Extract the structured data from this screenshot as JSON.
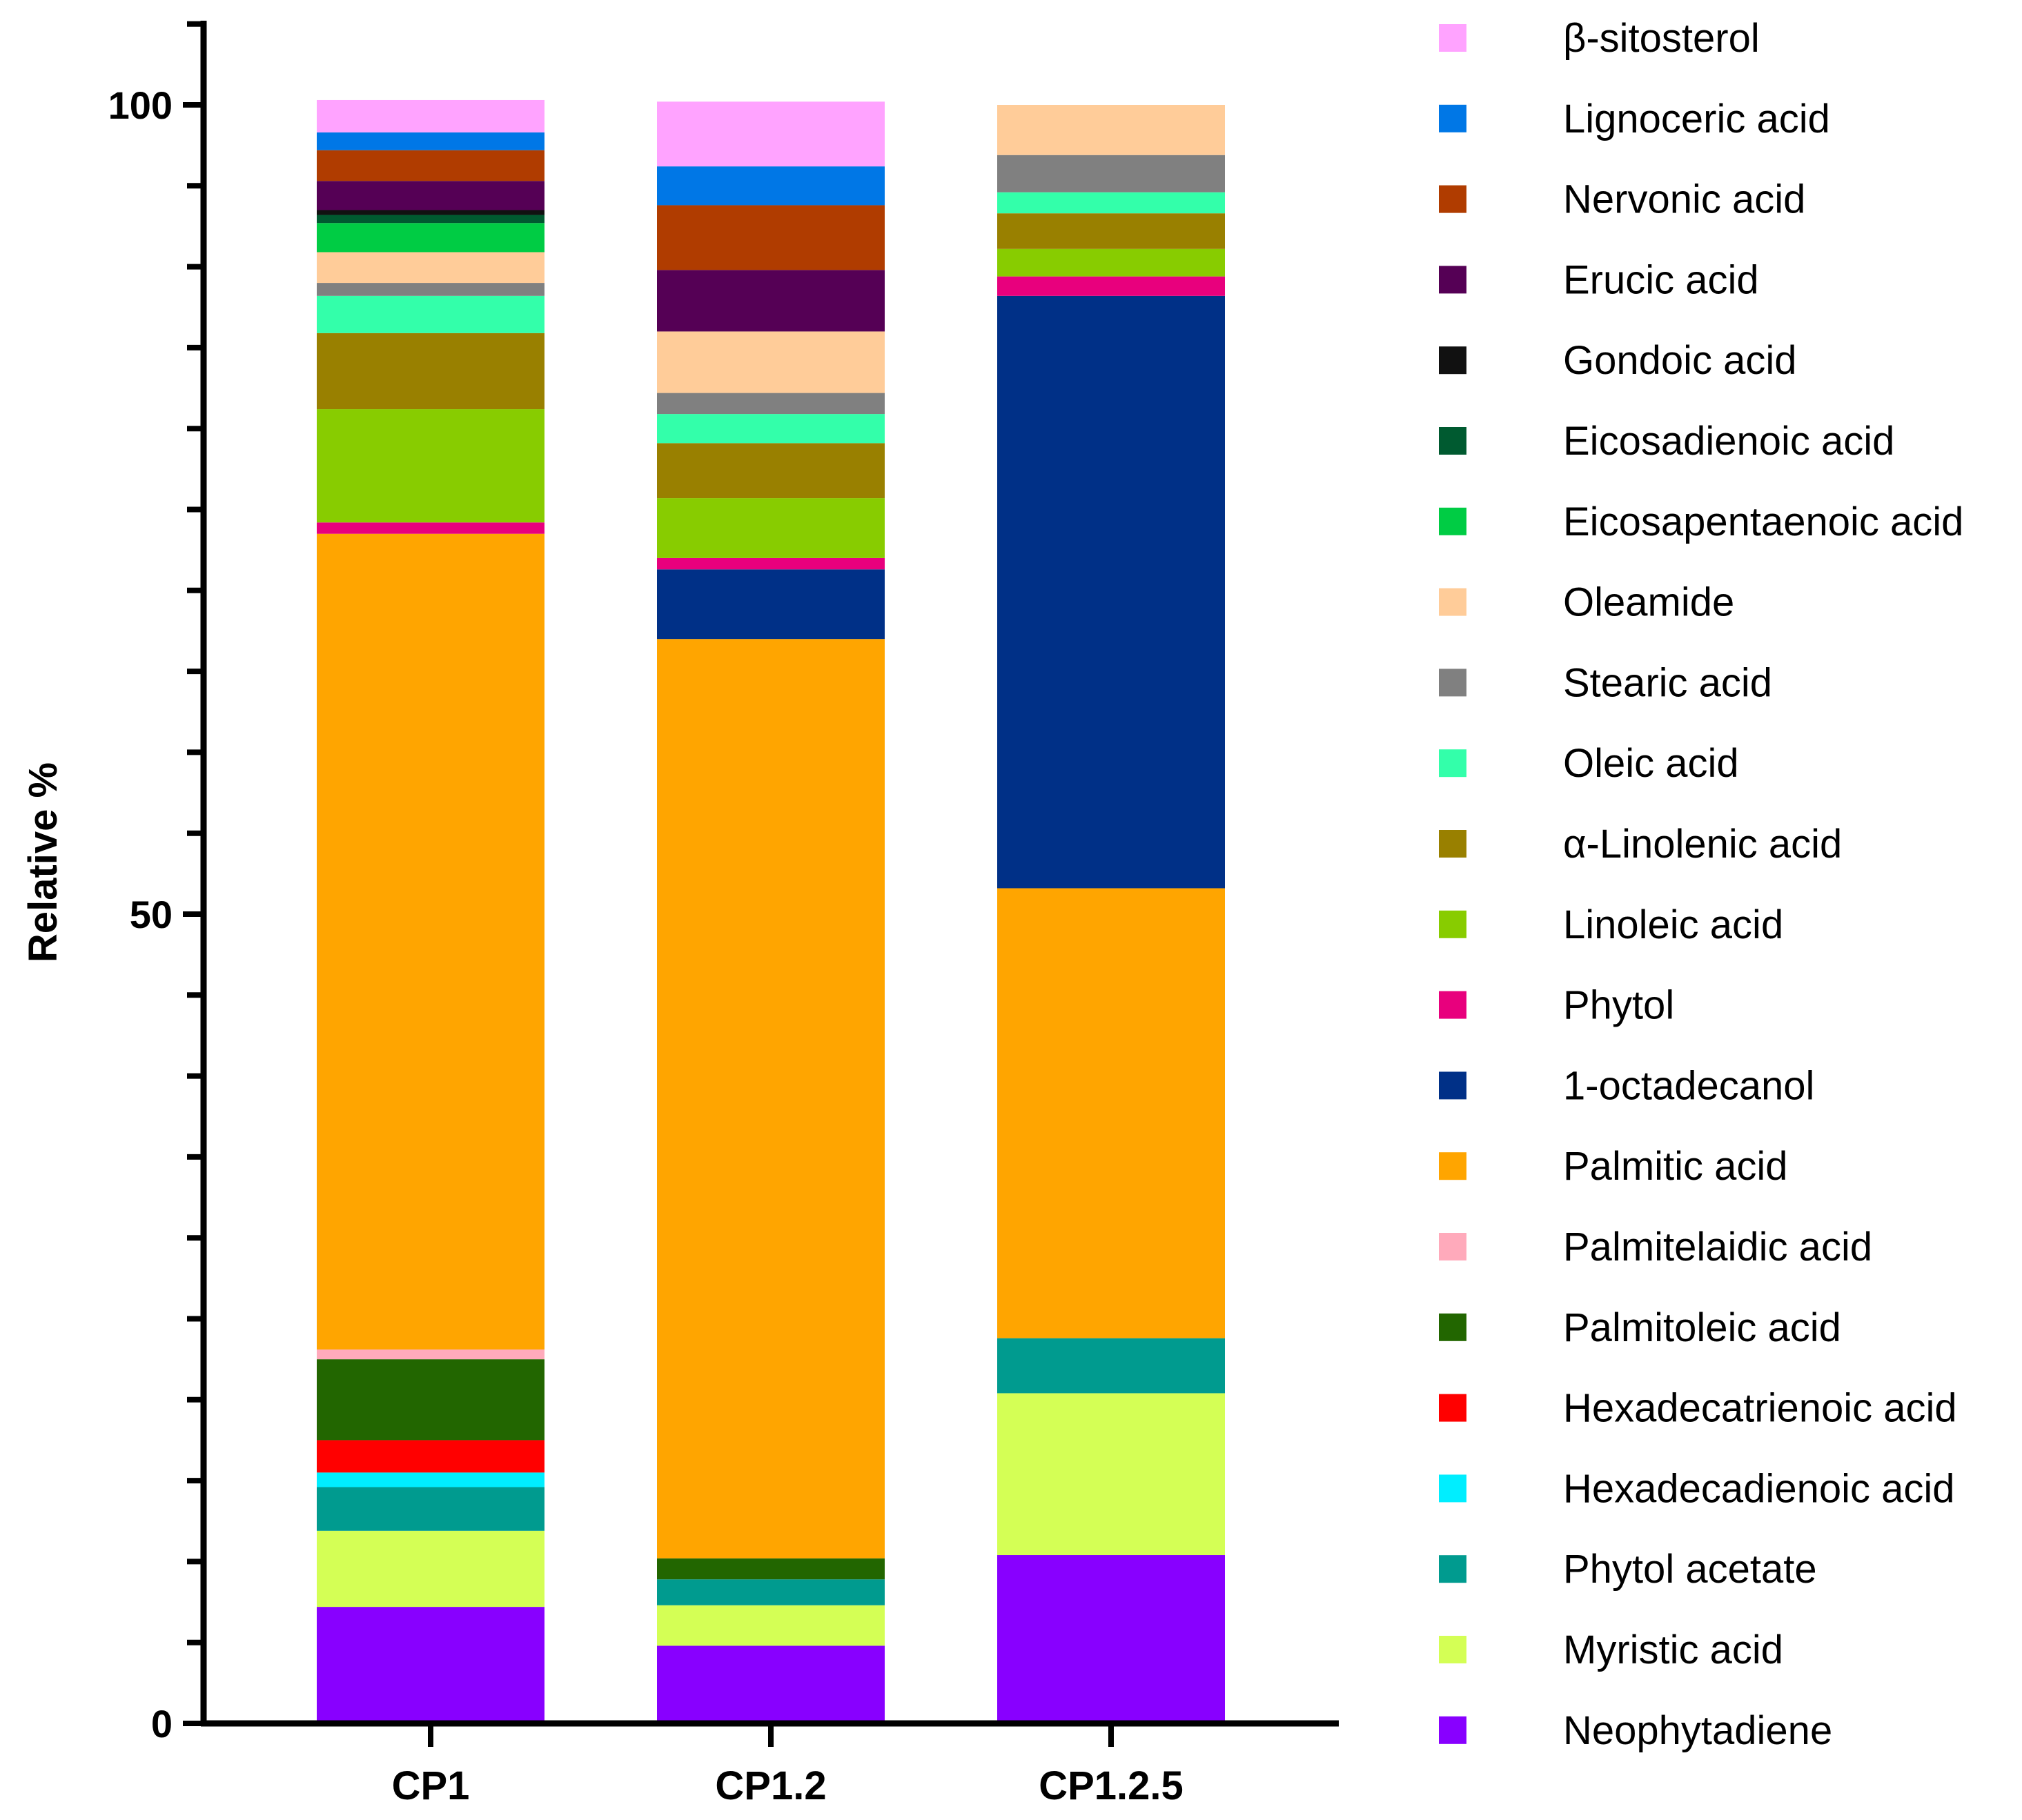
{
  "chart_data": {
    "type": "bar",
    "stacked": true,
    "title": "",
    "xlabel": "",
    "ylabel": "Relative %",
    "ylim": [
      0,
      105
    ],
    "yticks_labeled": [
      0,
      50,
      100
    ],
    "yticks_minor_step": 5,
    "categories": [
      "CP1",
      "CP1.2",
      "CP1.2.5"
    ],
    "legend_position": "right",
    "series": [
      {
        "name": "Neophytadiene",
        "color": "#8800ff",
        "values": [
          7.2,
          4.8,
          10.4
        ]
      },
      {
        "name": "Myristic acid",
        "color": "#d4ff55",
        "values": [
          4.7,
          2.5,
          10.0
        ]
      },
      {
        "name": "Phytol acetate",
        "color": "#009b8f",
        "values": [
          2.7,
          1.6,
          3.4
        ]
      },
      {
        "name": "Hexadecadienoic acid",
        "color": "#00eeff",
        "values": [
          0.9,
          0.0,
          0.0
        ]
      },
      {
        "name": "Hexadecatrienoic acid",
        "color": "#ff0000",
        "values": [
          2.0,
          0.0,
          0.0
        ]
      },
      {
        "name": "Palmitoleic acid",
        "color": "#226600",
        "values": [
          5.0,
          1.3,
          0.0
        ]
      },
      {
        "name": "Palmitelaidic acid",
        "color": "#ffaabb",
        "values": [
          0.6,
          0.0,
          0.0
        ]
      },
      {
        "name": "Palmitic acid",
        "color": "#ffa500",
        "values": [
          50.4,
          56.8,
          27.8
        ]
      },
      {
        "name": "1-octadecanol",
        "color": "#003087",
        "values": [
          0.0,
          4.3,
          36.6
        ]
      },
      {
        "name": "Phytol",
        "color": "#e8007d",
        "values": [
          0.7,
          0.7,
          1.2
        ]
      },
      {
        "name": "Linoleic acid",
        "color": "#88cc00",
        "values": [
          7.0,
          3.7,
          1.7
        ]
      },
      {
        "name": "α-Linolenic acid",
        "color": "#998000",
        "values": [
          4.7,
          3.4,
          2.2
        ]
      },
      {
        "name": "Oleic acid",
        "color": "#33ffaa",
        "values": [
          2.3,
          1.8,
          1.3
        ]
      },
      {
        "name": "Stearic acid",
        "color": "#808080",
        "values": [
          0.8,
          1.3,
          2.3
        ]
      },
      {
        "name": "Oleamide",
        "color": "#ffcc99",
        "values": [
          1.9,
          3.8,
          3.1
        ]
      },
      {
        "name": "Eicosapentaenoic acid",
        "color": "#00cc44",
        "values": [
          1.8,
          0.0,
          0.0
        ]
      },
      {
        "name": "Eicosadienoic acid",
        "color": "#005a30",
        "values": [
          0.5,
          0.0,
          0.0
        ]
      },
      {
        "name": "Gondoic acid",
        "color": "#111111",
        "values": [
          0.3,
          0.0,
          0.0
        ]
      },
      {
        "name": "Erucic acid",
        "color": "#550055",
        "values": [
          1.8,
          3.8,
          0.0
        ]
      },
      {
        "name": "Nervonic acid",
        "color": "#b03c00",
        "values": [
          1.9,
          4.0,
          0.0
        ]
      },
      {
        "name": "Lignoceric acid",
        "color": "#0077e6",
        "values": [
          1.1,
          2.4,
          0.0
        ]
      },
      {
        "name": "β-sitosterol",
        "color": "#ffa3ff",
        "values": [
          2.0,
          4.0,
          0.0
        ]
      }
    ],
    "legend_order": [
      "β-sitosterol",
      "Lignoceric acid",
      "Nervonic acid",
      "Erucic acid",
      "Gondoic acid",
      "Eicosadienoic acid",
      "Eicosapentaenoic acid",
      "Oleamide",
      "Stearic acid",
      "Oleic acid",
      "α-Linolenic acid",
      "Linoleic acid",
      "Phytol",
      "1-octadecanol",
      "Palmitic acid",
      "Palmitelaidic acid",
      "Palmitoleic acid",
      "Hexadecatrienoic acid",
      "Hexadecadienoic acid",
      "Phytol acetate",
      "Myristic acid",
      "Neophytadiene"
    ]
  }
}
